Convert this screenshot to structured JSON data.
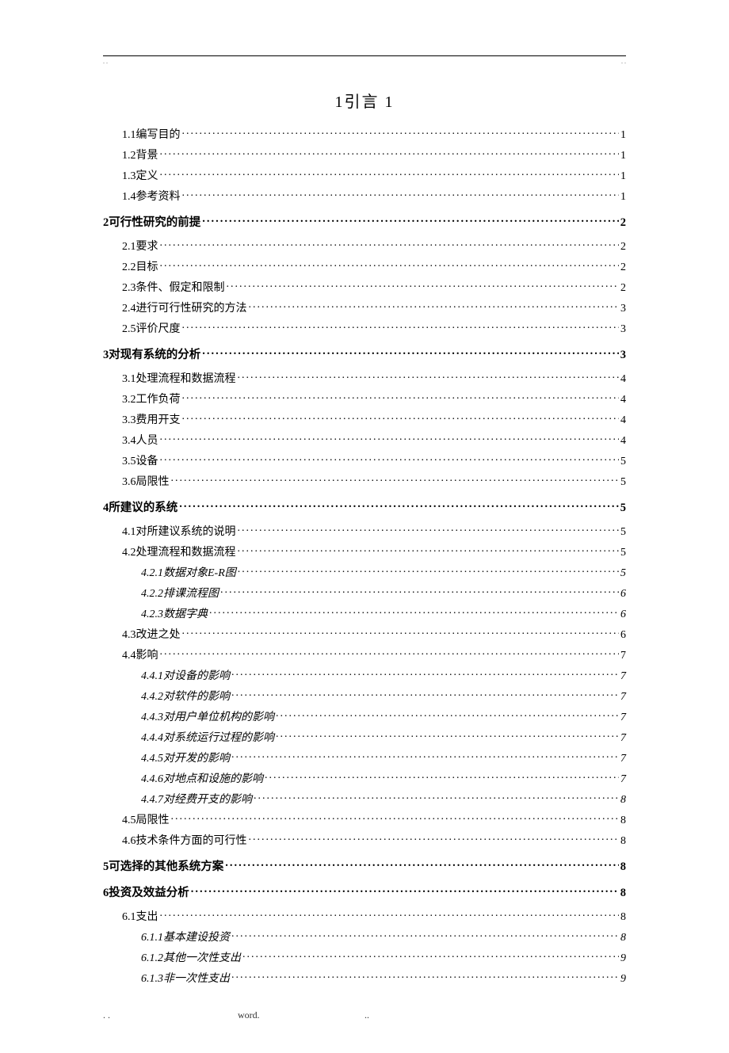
{
  "header": {
    "dot_left": ". .",
    "dot_right": ". ."
  },
  "title": "1引言  1",
  "toc": [
    {
      "level": 2,
      "text": "1.1编写目的",
      "page": "1"
    },
    {
      "level": 2,
      "text": "1.2背景",
      "page": "1"
    },
    {
      "level": 2,
      "text": "1.3定义",
      "page": "1"
    },
    {
      "level": 2,
      "text": "1.4参考资料",
      "page": "1"
    },
    {
      "level": 1,
      "text": "2可行性研究的前提",
      "page": "2"
    },
    {
      "level": 2,
      "text": "2.1要求",
      "page": "2"
    },
    {
      "level": 2,
      "text": "2.2目标",
      "page": "2"
    },
    {
      "level": 2,
      "text": "2.3条件、假定和限制",
      "page": "2"
    },
    {
      "level": 2,
      "text": "2.4进行可行性研究的方法",
      "page": "3"
    },
    {
      "level": 2,
      "text": "2.5评价尺度",
      "page": "3"
    },
    {
      "level": 1,
      "text": "3对现有系统的分析",
      "page": "3"
    },
    {
      "level": 2,
      "text": "3.1处理流程和数据流程",
      "page": "4"
    },
    {
      "level": 2,
      "text": "3.2工作负荷",
      "page": "4"
    },
    {
      "level": 2,
      "text": "3.3费用开支",
      "page": "4"
    },
    {
      "level": 2,
      "text": "3.4人员",
      "page": "4"
    },
    {
      "level": 2,
      "text": "3.5设备",
      "page": "5"
    },
    {
      "level": 2,
      "text": "3.6局限性",
      "page": "5"
    },
    {
      "level": 1,
      "text": "4所建议的系统",
      "page": "5"
    },
    {
      "level": 2,
      "text": "4.1对所建议系统的说明",
      "page": "5"
    },
    {
      "level": 2,
      "text": "4.2处理流程和数据流程",
      "page": "5"
    },
    {
      "level": 3,
      "text": "4.2.1数据对象E-R图",
      "page": "5"
    },
    {
      "level": 3,
      "text": "4.2.2排课流程图",
      "page": "6"
    },
    {
      "level": 3,
      "text": "4.2.3数据字典",
      "page": "6"
    },
    {
      "level": 2,
      "text": "4.3改进之处",
      "page": "6"
    },
    {
      "level": 2,
      "text": "4.4影响",
      "page": "7"
    },
    {
      "level": 3,
      "text": "4.4.1对设备的影响",
      "page": "7"
    },
    {
      "level": 3,
      "text": "4.4.2对软件的影响",
      "page": "7"
    },
    {
      "level": 3,
      "text": "4.4.3对用户单位机构的影响",
      "page": "7"
    },
    {
      "level": 3,
      "text": "4.4.4对系统运行过程的影响",
      "page": "7"
    },
    {
      "level": 3,
      "text": "4.4.5对开发的影响",
      "page": "7"
    },
    {
      "level": 3,
      "text": "4.4.6对地点和设施的影响",
      "page": "7"
    },
    {
      "level": 3,
      "text": "4.4.7对经费开支的影响",
      "page": "8"
    },
    {
      "level": 2,
      "text": "4.5局限性",
      "page": "8"
    },
    {
      "level": 2,
      "text": "4.6技术条件方面的可行性",
      "page": "8"
    },
    {
      "level": 1,
      "text": "5可选择的其他系统方案",
      "page": "8"
    },
    {
      "level": 1,
      "text": "6投资及效益分析",
      "page": "8"
    },
    {
      "level": 2,
      "text": "6.1支出",
      "page": "8"
    },
    {
      "level": 3,
      "text": "6.1.1基本建设投资",
      "page": "8"
    },
    {
      "level": 3,
      "text": "6.1.2其他一次性支出",
      "page": "9"
    },
    {
      "level": 3,
      "text": "6.1.3非一次性支出",
      "page": "9"
    }
  ],
  "footer": {
    "left": ". .",
    "mid": "word.",
    "right": ".."
  }
}
